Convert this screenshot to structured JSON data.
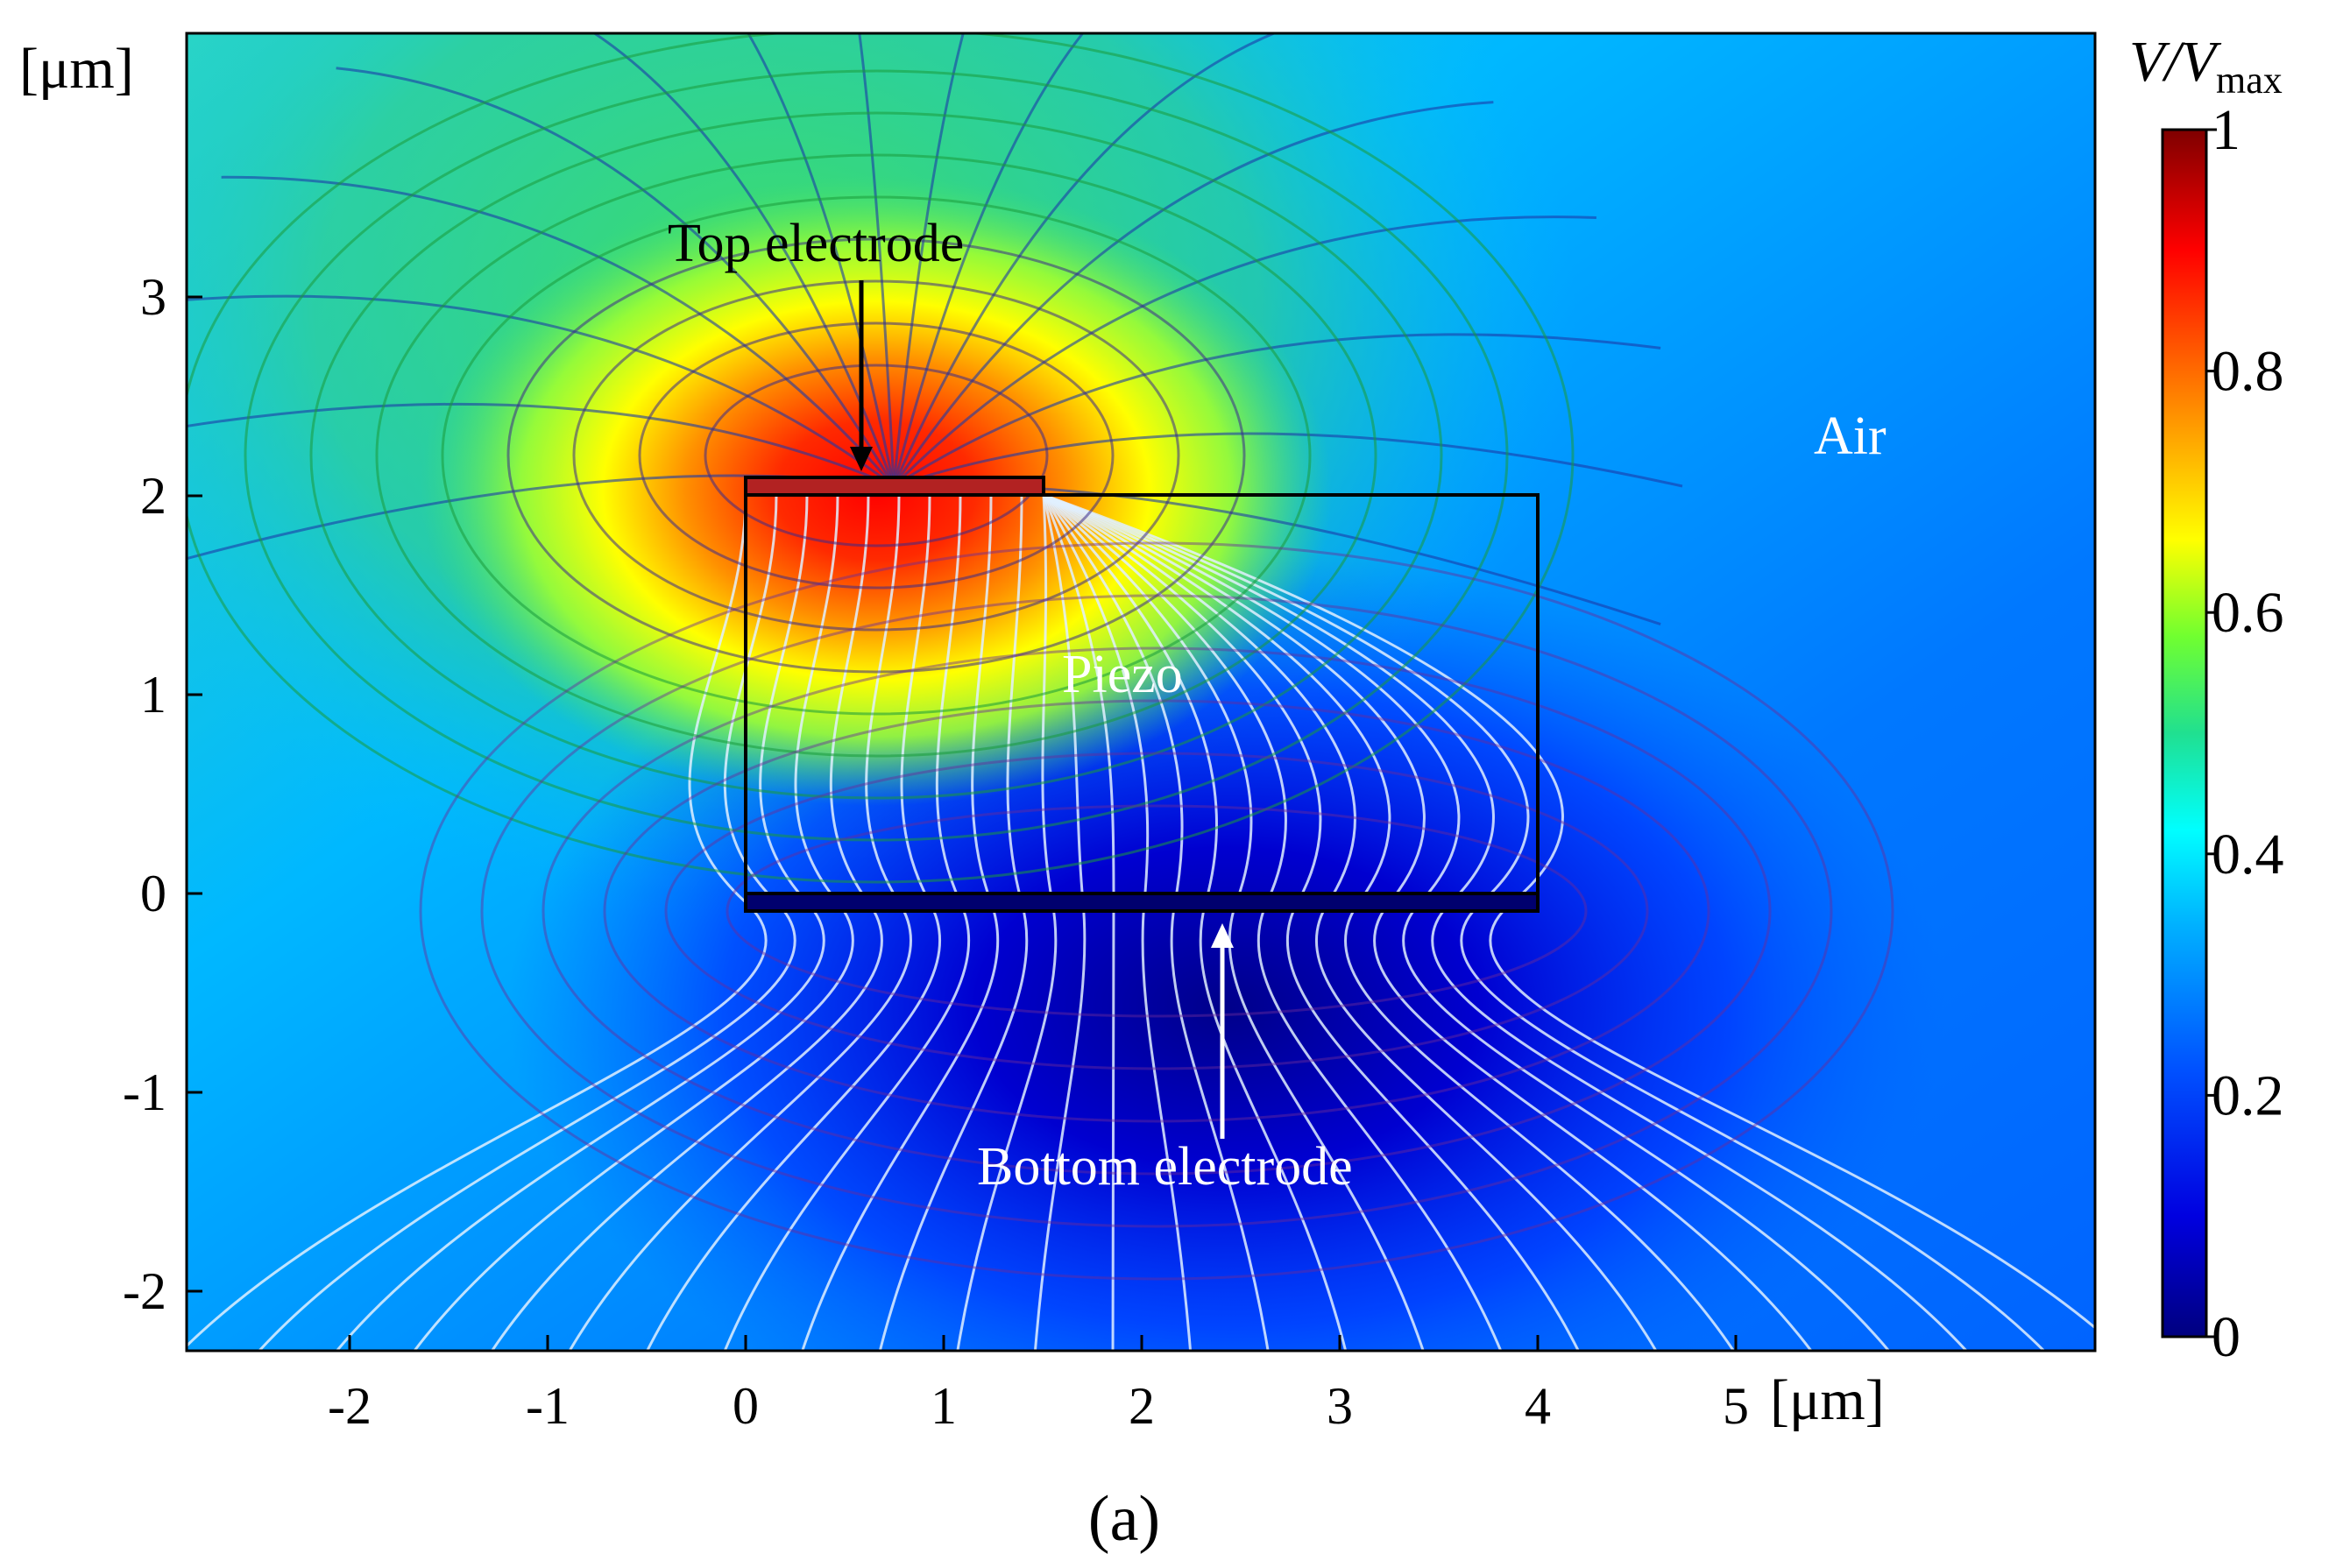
{
  "figure": {
    "quantity_label": {
      "main": "V/V",
      "subscript": "max"
    },
    "x_unit": "[μm]",
    "y_unit": "[μm]",
    "x_ticks": [
      "-2",
      "-1",
      "0",
      "1",
      "2",
      "3",
      "4",
      "5"
    ],
    "y_ticks": [
      "3",
      "2",
      "1",
      "0",
      "-1",
      "-2"
    ],
    "colorbar": {
      "ticks": [
        "1",
        "0.8",
        "0.6",
        "0.4",
        "0.2",
        "0"
      ],
      "range": [
        0,
        1
      ],
      "colormap": [
        "#00007f",
        "#0000ff",
        "#0080ff",
        "#00ffff",
        "#00ff80",
        "#80ff00",
        "#ffff00",
        "#ff8000",
        "#ff0000",
        "#7f0000"
      ]
    },
    "regions": {
      "top_electrode": "Top electrode",
      "piezo": "Piezo",
      "air": "Air",
      "bottom_electrode": "Bottom electrode"
    },
    "caption": "(a)"
  },
  "colors": {
    "equipotential_line_light": "#e0f0ff",
    "field_line_dark": "#1b3aa8",
    "electrode_fill": "#b22222",
    "frame": "#000000"
  }
}
